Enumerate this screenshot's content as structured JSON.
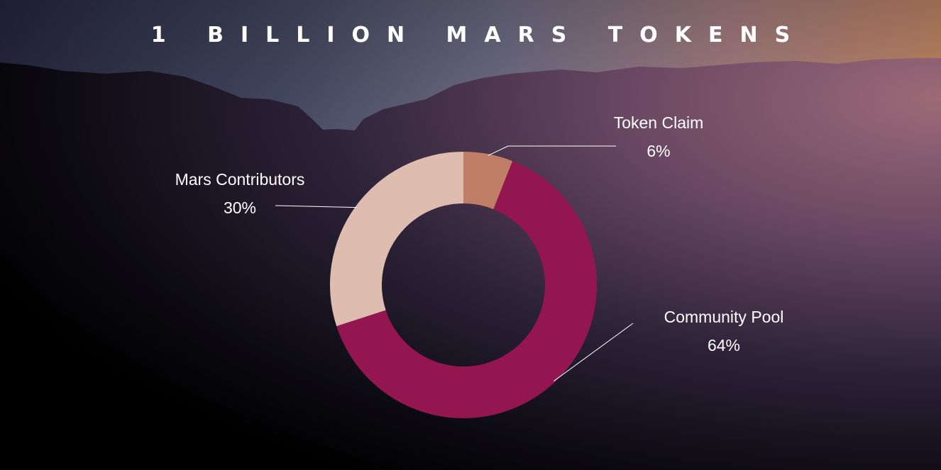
{
  "title": "1 BILLION MARS TOKENS",
  "colors": {
    "token_claim": "#c17e67",
    "community_pool": "#931651",
    "mars_contributors": "#dfbcb0",
    "leader_line": "#ffffff",
    "sky_top_left": "#2c2a47",
    "sky_top_right": "#e9a37c",
    "ground": "#000000"
  },
  "chart_data": {
    "type": "pie",
    "subtype": "donut",
    "title": "1 BILLION MARS TOKENS",
    "slices": [
      {
        "label": "Token Claim",
        "value": 6,
        "display": "6%",
        "color": "#c17e67",
        "key": "token_claim"
      },
      {
        "label": "Community Pool",
        "value": 64,
        "display": "64%",
        "color": "#931651",
        "key": "community_pool"
      },
      {
        "label": "Mars Contributors",
        "value": 30,
        "display": "30%",
        "color": "#dfbcb0",
        "key": "mars_contributors"
      }
    ]
  }
}
